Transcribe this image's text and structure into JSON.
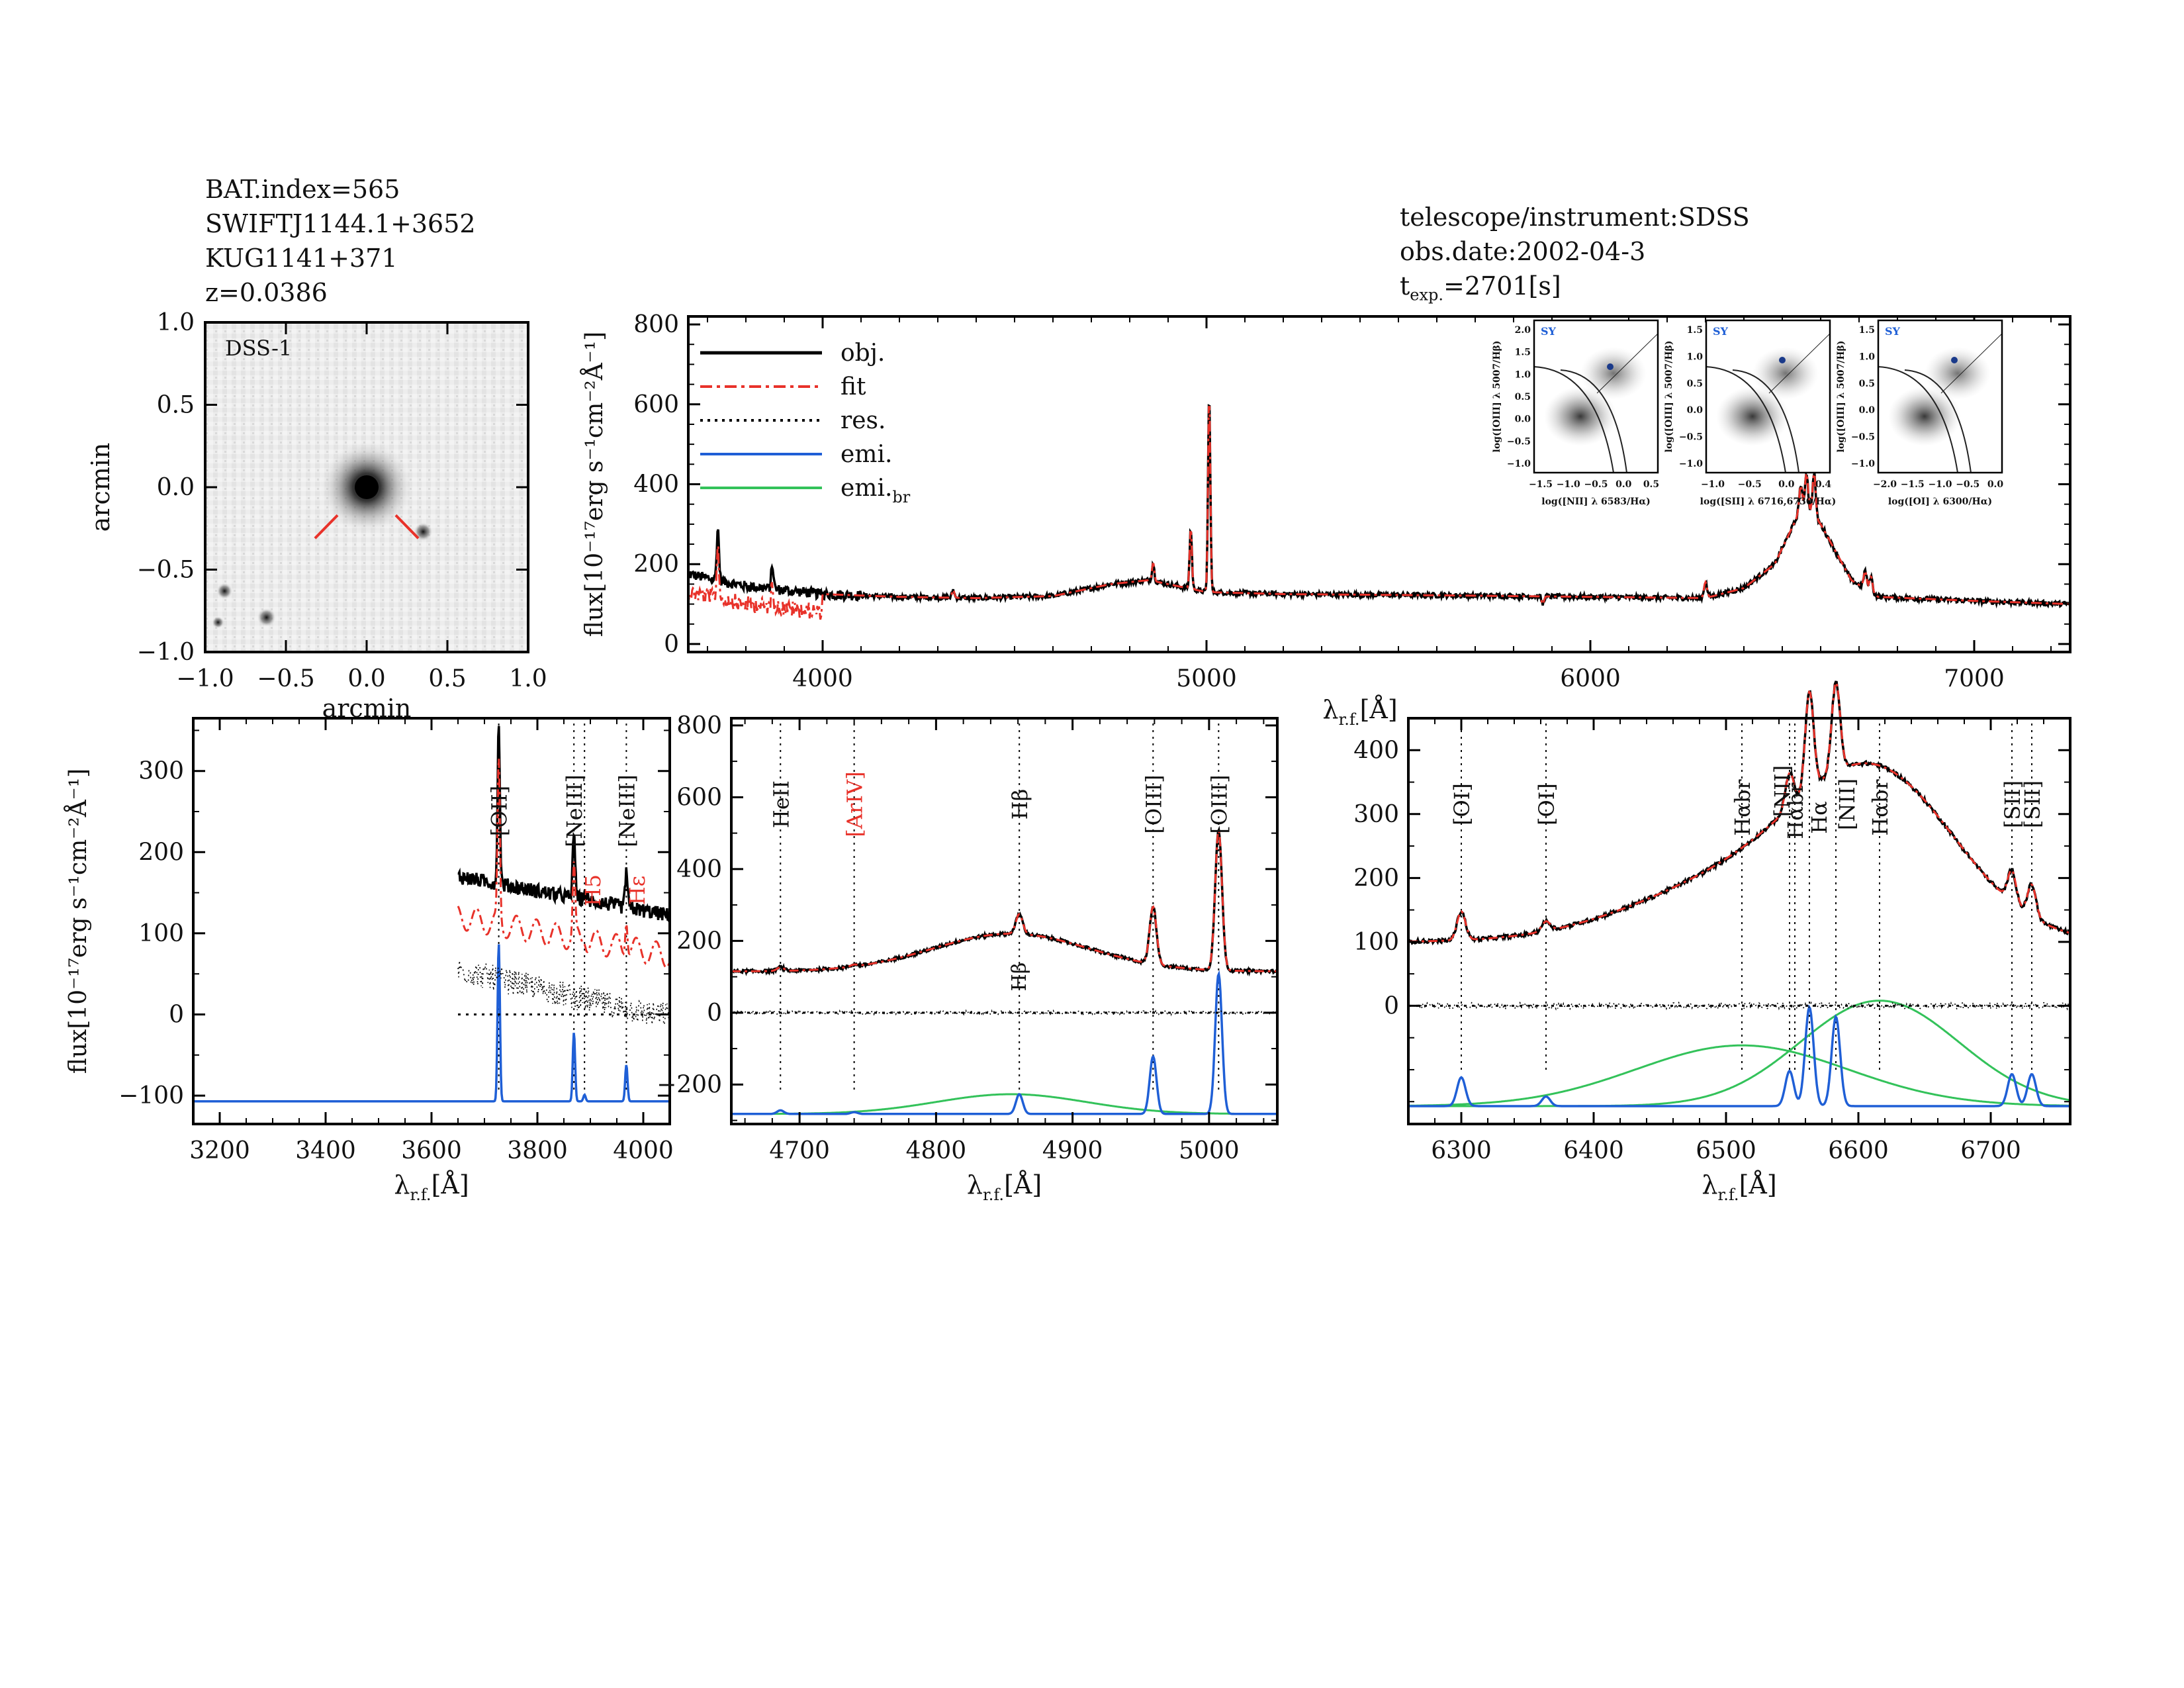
{
  "header_left": {
    "bat_index": "BAT.index=565",
    "swift_name": "SWIFTJ1144.1+3652",
    "galaxy_name": "KUG1141+371",
    "redshift": "z=0.0386"
  },
  "header_right": {
    "instrument": "telescope/instrument:SDSS",
    "obs_date": "obs.date:2002-04-3",
    "texp_prefix": "t",
    "texp_sub": "exp.",
    "texp_value": "=2701[s]"
  },
  "colors": {
    "obj": "#000000",
    "fit": "#e8322a",
    "res": "#000000",
    "emi": "#1f5fd6",
    "emi_br": "#33c25a"
  },
  "labels": {
    "flux_axis": "flux[10⁻¹⁷erg s⁻¹cm⁻²Å⁻¹]",
    "lambda_base": "λ",
    "lambda_sub": "r.f.",
    "lambda_unit": "[Å]",
    "arcmin": "arcmin"
  },
  "image_panel": {
    "survey_label": "DSS-1",
    "xlim": [
      -1.0,
      1.0
    ],
    "ylim": [
      -1.0,
      1.0
    ],
    "xticks": [
      "-1.0",
      "-0.5",
      "0.0",
      "0.5",
      "1.0"
    ],
    "yticks": [
      "1.0",
      "0.5",
      "0.0",
      "-0.5",
      "-1.0"
    ]
  },
  "chart_data": [
    {
      "id": "full_spectrum",
      "type": "line",
      "xlim": [
        3650,
        7250
      ],
      "ylim": [
        -20,
        820
      ],
      "xticks": [
        4000,
        5000,
        6000,
        7000
      ],
      "yticks": [
        0,
        200,
        400,
        600,
        800
      ],
      "legend": [
        "obj.",
        "fit",
        "res.",
        "emi.",
        "emi.br"
      ],
      "legend_main": [
        "obj.",
        "fit",
        "res.",
        "emi.",
        "emi."
      ],
      "legend_sub": [
        "",
        "",
        "",
        "",
        "br"
      ],
      "continuum": [
        [
          3650,
          175
        ],
        [
          3700,
          165
        ],
        [
          3800,
          145
        ],
        [
          3900,
          135
        ],
        [
          4000,
          125
        ],
        [
          4200,
          118
        ],
        [
          4400,
          115
        ],
        [
          4600,
          120
        ],
        [
          4750,
          150
        ],
        [
          4850,
          160
        ],
        [
          4950,
          140
        ],
        [
          5000,
          130
        ],
        [
          5200,
          125
        ],
        [
          5600,
          122
        ],
        [
          6000,
          118
        ],
        [
          6300,
          115
        ],
        [
          6400,
          140
        ],
        [
          6480,
          200
        ],
        [
          6540,
          320
        ],
        [
          6563,
          340
        ],
        [
          6600,
          300
        ],
        [
          6680,
          160
        ],
        [
          6750,
          118
        ],
        [
          7000,
          108
        ],
        [
          7250,
          100
        ]
      ],
      "lines": [
        [
          3727,
          130
        ],
        [
          3869,
          60
        ],
        [
          4340,
          20
        ],
        [
          4861,
          45
        ],
        [
          4959,
          150
        ],
        [
          5007,
          490
        ],
        [
          5876,
          -20
        ],
        [
          6300,
          40
        ],
        [
          6548,
          70
        ],
        [
          6563,
          90
        ],
        [
          6583,
          110
        ],
        [
          6716,
          45
        ],
        [
          6731,
          40
        ]
      ]
    },
    {
      "id": "zoom_blue",
      "type": "line",
      "xlim": [
        3150,
        4050
      ],
      "ylim": [
        -135,
        365
      ],
      "xticks": [
        3200,
        3400,
        3600,
        3800,
        4000
      ],
      "yticks": [
        -100,
        0,
        100,
        200,
        300
      ],
      "data_start": 3650,
      "line_labels": [
        {
          "x": 3727,
          "text": "[OII]",
          "color": "black",
          "dotted": true
        },
        {
          "x": 3869,
          "text": "[NeIII]",
          "color": "black",
          "dotted": true
        },
        {
          "x": 3889,
          "text": "H5",
          "color": "red",
          "dotted": true
        },
        {
          "x": 3968,
          "text": "[NeIII]",
          "color": "black",
          "dotted": true
        },
        {
          "x": 3970,
          "text": "Hε",
          "color": "red",
          "dotted": false
        }
      ],
      "emission": [
        [
          3727,
          195
        ],
        [
          3869,
          85
        ],
        [
          3968,
          45
        ],
        [
          3889,
          8
        ]
      ]
    },
    {
      "id": "zoom_hbeta",
      "type": "line",
      "xlim": [
        4650,
        5050
      ],
      "ylim": [
        -310,
        820
      ],
      "xticks": [
        4700,
        4800,
        4900,
        5000
      ],
      "yticks": [
        -200,
        0,
        200,
        400,
        600,
        800
      ],
      "line_labels": [
        {
          "x": 4686,
          "text": "HeII",
          "color": "black"
        },
        {
          "x": 4740,
          "text": "[ArIV]",
          "color": "red"
        },
        {
          "x": 4861,
          "text": "Hβ",
          "color": "black"
        },
        {
          "x": 4959,
          "text": "[OIII]",
          "color": "black"
        },
        {
          "x": 5007,
          "text": "[OIII]",
          "color": "black"
        }
      ],
      "narrow_label": {
        "x": 4861,
        "text": "Hβ"
      },
      "emission": [
        [
          4686,
          10
        ],
        [
          4740,
          5
        ],
        [
          4861,
          55
        ],
        [
          4959,
          160
        ],
        [
          5007,
          390
        ]
      ],
      "broad": [
        {
          "center": 4855,
          "amp": 55,
          "sigma": 55
        }
      ]
    },
    {
      "id": "zoom_halpha",
      "type": "line",
      "xlim": [
        6260,
        6760
      ],
      "ylim": [
        -185,
        450
      ],
      "xticks": [
        6300,
        6400,
        6500,
        6600,
        6700
      ],
      "yticks": [
        0,
        100,
        200,
        300,
        400
      ],
      "line_labels": [
        {
          "x": 6300,
          "text": "[OI]",
          "color": "black"
        },
        {
          "x": 6364,
          "text": "[OI]",
          "color": "black"
        },
        {
          "x": 6512,
          "text": "Hαbr",
          "color": "black"
        },
        {
          "x": 6548,
          "text": "[NII]",
          "color": "black"
        },
        {
          "x": 6552,
          "text": "Hαbr",
          "color": "black"
        },
        {
          "x": 6563,
          "text": "Hα",
          "color": "black"
        },
        {
          "x": 6583,
          "text": "[NII]",
          "color": "black"
        },
        {
          "x": 6616,
          "text": "Hαbr",
          "color": "black"
        },
        {
          "x": 6716,
          "text": "[SII]",
          "color": "black"
        },
        {
          "x": 6731,
          "text": "[SII]",
          "color": "black"
        }
      ],
      "emission": [
        [
          6300,
          45
        ],
        [
          6364,
          15
        ],
        [
          6548,
          55
        ],
        [
          6563,
          155
        ],
        [
          6583,
          140
        ],
        [
          6716,
          50
        ],
        [
          6731,
          50
        ]
      ],
      "broad": [
        {
          "center": 6512,
          "amp": 95,
          "sigma": 80
        },
        {
          "center": 6616,
          "amp": 165,
          "sigma": 60
        }
      ]
    }
  ],
  "bpt": [
    {
      "tag": "SY",
      "ylabel": "log([OIII] λ 5007/Hβ)",
      "xlabel": "log([NII] λ 6583/Hα)",
      "xticks": [
        "-1.5",
        "-1.0",
        "-0.5",
        "0.0",
        "0.5"
      ],
      "yticks": [
        "2.0",
        "1.5",
        "1.0",
        "0.5",
        "0.0",
        "-0.5",
        "-1.0"
      ]
    },
    {
      "tag": "SY",
      "ylabel": "log([OIII] λ 5007/Hβ)",
      "xlabel": "log([SII] λ 6716,6730/Hα)",
      "xticks": [
        "-1.0",
        "-0.5",
        "0.0",
        "0.4"
      ],
      "yticks": [
        "1.5",
        "1.0",
        "0.5",
        "0.0",
        "-0.5",
        "-1.0"
      ]
    },
    {
      "tag": "SY",
      "ylabel": "log([OIII] λ 5007/Hβ)",
      "xlabel": "log([OI] λ 6300/Hα)",
      "xticks": [
        "-2.0",
        "-1.5",
        "-1.0",
        "-0.5",
        "0.0"
      ],
      "yticks": [
        "1.5",
        "1.0",
        "0.5",
        "0.0",
        "-0.5",
        "-1.0"
      ]
    }
  ]
}
